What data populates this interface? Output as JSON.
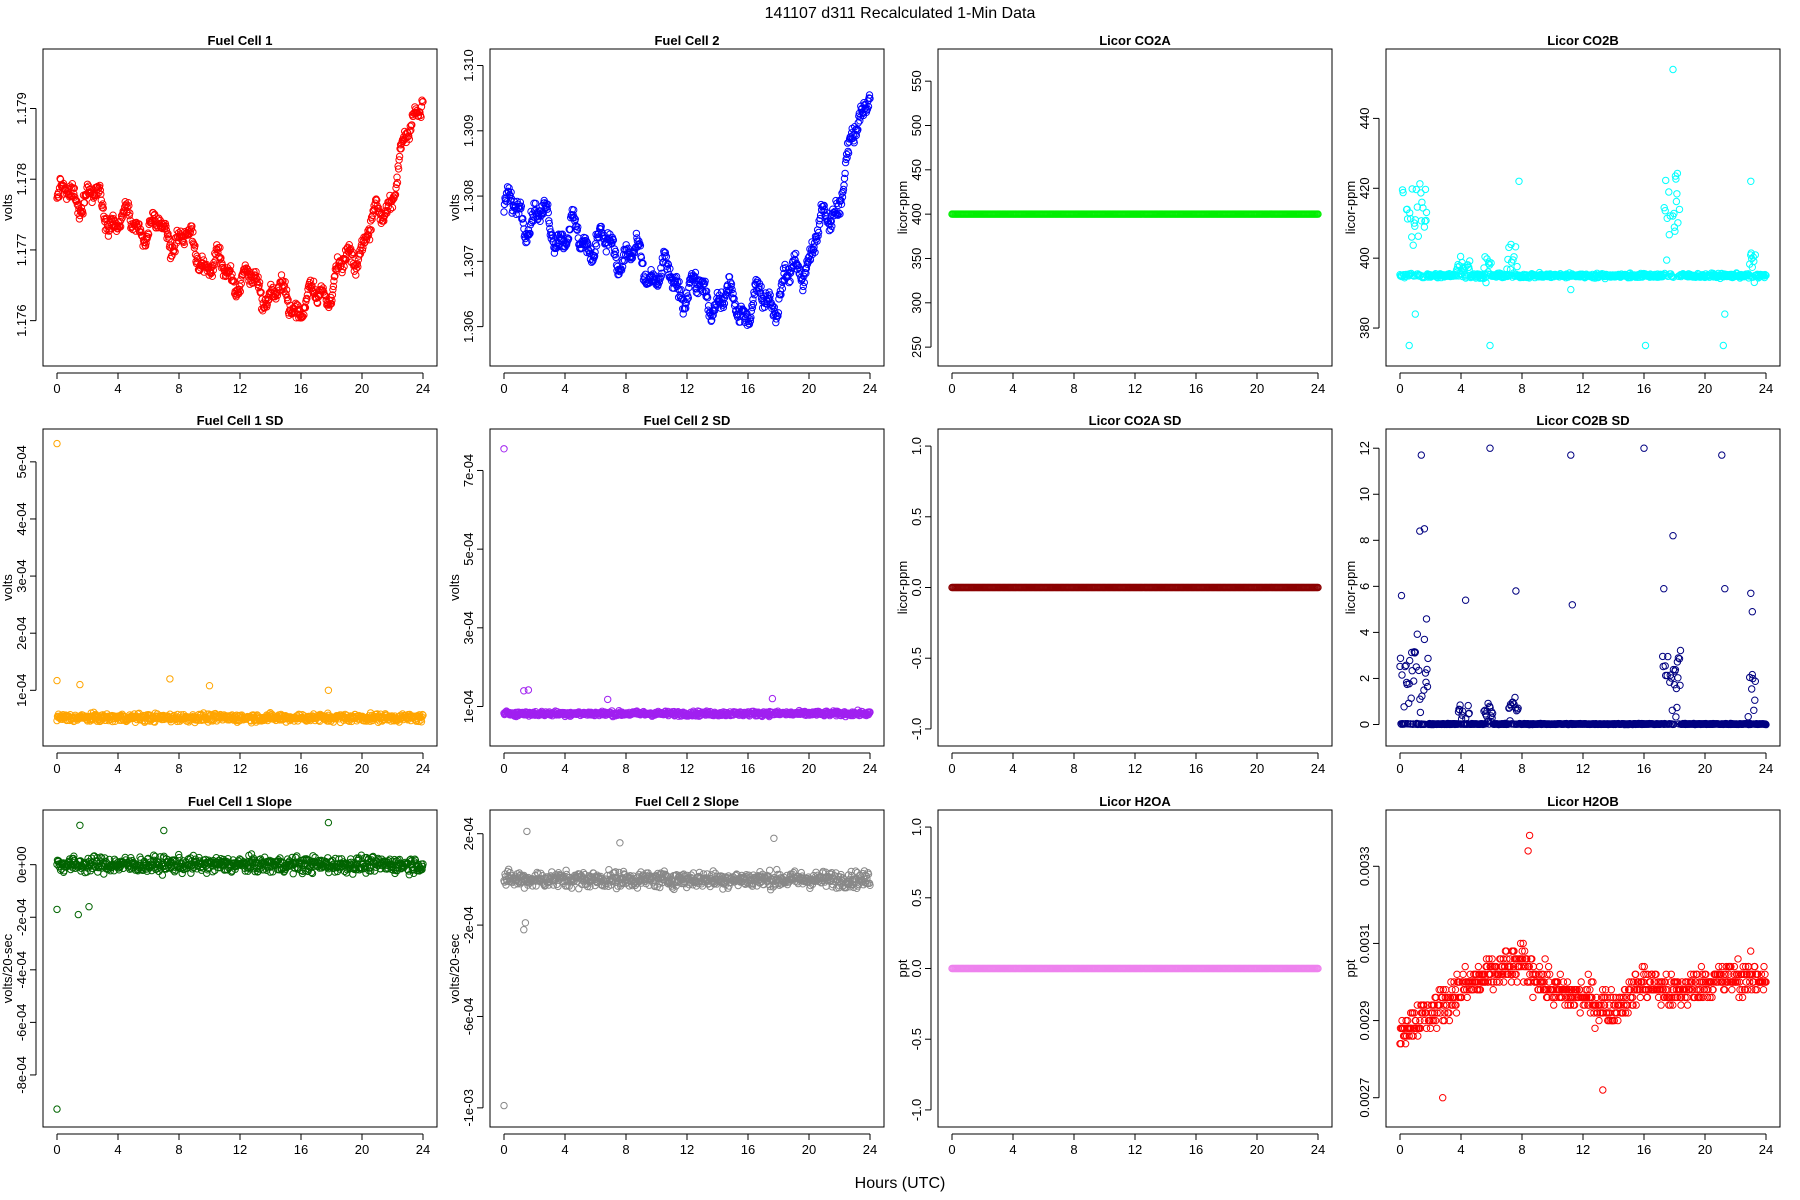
{
  "figure": {
    "title": "141107   d311   Recalculated 1-Min Data",
    "xlabel": "Hours (UTC)"
  },
  "chart_data": [
    {
      "type": "scatter",
      "title": "Fuel Cell 1",
      "ylabel": "volts",
      "color": "#ff0000",
      "xlim": [
        0,
        24
      ],
      "xticks": [
        0,
        4,
        8,
        12,
        16,
        20,
        24
      ],
      "ylim": [
        1.1755,
        1.1797
      ],
      "yticks": [
        1.176,
        1.177,
        1.178,
        1.179
      ],
      "ytick_labels": [
        "1.176",
        "1.177",
        "1.178",
        "1.179"
      ],
      "series": [
        {
          "name": "",
          "gen": "trend",
          "x": [
            0,
            2,
            4,
            6,
            8,
            10,
            12,
            14,
            16,
            18,
            20,
            22,
            23,
            24
          ],
          "y": [
            1.1777,
            1.1778,
            1.1774,
            1.1773,
            1.1772,
            1.1768,
            1.1766,
            1.1764,
            1.1762,
            1.1765,
            1.1771,
            1.1778,
            1.1786,
            1.1793
          ],
          "band": 0.0002
        }
      ]
    },
    {
      "type": "scatter",
      "title": "Fuel Cell 2",
      "ylabel": "volts",
      "color": "#0000ff",
      "xlim": [
        0,
        24
      ],
      "xticks": [
        0,
        4,
        8,
        12,
        16,
        20,
        24
      ],
      "ylim": [
        1.30555,
        1.3101
      ],
      "yticks": [
        1.306,
        1.307,
        1.308,
        1.309,
        1.31
      ],
      "ytick_labels": [
        "1.306",
        "1.307",
        "1.308",
        "1.309",
        "1.310"
      ],
      "series": [
        {
          "name": "",
          "gen": "trend",
          "x": [
            0,
            2,
            4,
            6,
            8,
            10,
            12,
            14,
            16,
            18,
            20,
            22,
            23,
            24
          ],
          "y": [
            1.3078,
            1.3077,
            1.3074,
            1.3073,
            1.3071,
            1.3068,
            1.3066,
            1.3064,
            1.3063,
            1.3065,
            1.3071,
            1.308,
            1.3089,
            1.3098
          ],
          "band": 0.00025
        }
      ]
    },
    {
      "type": "scatter",
      "title": "Licor CO2A",
      "ylabel": "licor-ppm",
      "color": "#00ee00",
      "xlim": [
        0,
        24
      ],
      "xticks": [
        0,
        4,
        8,
        12,
        16,
        20,
        24
      ],
      "ylim": [
        240,
        575
      ],
      "yticks": [
        250,
        300,
        350,
        400,
        450,
        500,
        550
      ],
      "ytick_labels": [
        "250",
        "300",
        "350",
        "400",
        "450",
        "500",
        "550"
      ],
      "series": [
        {
          "name": "",
          "gen": "const",
          "value": 400
        }
      ]
    },
    {
      "type": "scatter",
      "title": "Licor CO2B",
      "ylabel": "licor-ppm",
      "color": "#00ffff",
      "xlim": [
        0,
        24
      ],
      "xticks": [
        0,
        4,
        8,
        12,
        16,
        20,
        24
      ],
      "ylim": [
        372,
        457
      ],
      "yticks": [
        380,
        400,
        420,
        440
      ],
      "ytick_labels": [
        "380",
        "400",
        "420",
        "440"
      ],
      "series": [
        {
          "name": "",
          "gen": "spiky",
          "base": 395,
          "noise": 0.6,
          "spikes": [
            [
              0.0,
              1.9,
              416,
              12
            ],
            [
              3.7,
              4.6,
              398,
              3
            ],
            [
              5.5,
              6.0,
              397,
              4
            ],
            [
              7.0,
              7.8,
              399,
              4
            ],
            [
              17.3,
              18.4,
              415,
              15
            ],
            [
              22.9,
              23.3,
              398,
              5
            ]
          ],
          "extras": [
            [
              0.6,
              375
            ],
            [
              1.0,
              384
            ],
            [
              5.9,
              375
            ],
            [
              7.8,
              422
            ],
            [
              11.2,
              391
            ],
            [
              16.1,
              375
            ],
            [
              17.9,
              454
            ],
            [
              21.2,
              375
            ],
            [
              21.3,
              384
            ],
            [
              23.0,
              422
            ]
          ]
        }
      ]
    },
    {
      "type": "scatter",
      "title": "Fuel Cell 1 SD",
      "ylabel": "volts",
      "color": "#ffa500",
      "xlim": [
        0,
        24
      ],
      "xticks": [
        0,
        4,
        8,
        12,
        16,
        20,
        24
      ],
      "ylim": [
        2e-05,
        0.00054
      ],
      "yticks": [
        0.0001,
        0.0002,
        0.0003,
        0.0004,
        0.0005
      ],
      "ytick_labels": [
        "1e-04",
        "2e-04",
        "3e-04",
        "4e-04",
        "5e-04"
      ],
      "series": [
        {
          "name": "",
          "gen": "noise",
          "base": 5.2e-05,
          "spread": 7e-06,
          "outliers": [
            [
              0.0,
              0.000532
            ],
            [
              0.0,
              0.000117
            ],
            [
              1.5,
              0.00011
            ],
            [
              7.4,
              0.00012
            ],
            [
              10.0,
              0.000108
            ],
            [
              17.8,
              0.0001
            ]
          ]
        }
      ]
    },
    {
      "type": "scatter",
      "title": "Fuel Cell 2 SD",
      "ylabel": "volts",
      "color": "#a020f0",
      "xlim": [
        0,
        24
      ],
      "xticks": [
        0,
        4,
        8,
        12,
        16,
        20,
        24
      ],
      "ylim": [
        2.5e-05,
        0.00078
      ],
      "yticks": [
        0.0001,
        0.0003,
        0.0005,
        0.0007
      ],
      "ytick_labels": [
        "1e-04",
        "3e-04",
        "5e-04",
        "7e-04"
      ],
      "series": [
        {
          "name": "",
          "gen": "noise",
          "base": 8.2e-05,
          "spread": 6e-06,
          "outliers": [
            [
              0.0,
              0.000755
            ],
            [
              1.3,
              0.00014
            ],
            [
              1.6,
              0.000142
            ],
            [
              6.8,
              0.000118
            ],
            [
              17.6,
              0.00012
            ]
          ]
        }
      ]
    },
    {
      "type": "scatter",
      "title": "Licor CO2A SD",
      "ylabel": "licor-ppm",
      "color": "#8b0000",
      "xlim": [
        0,
        24
      ],
      "xticks": [
        0,
        4,
        8,
        12,
        16,
        20,
        24
      ],
      "ylim": [
        -1.05,
        1.05
      ],
      "yticks": [
        -1.0,
        -0.5,
        0.0,
        0.5,
        1.0
      ],
      "ytick_labels": [
        "-1.0",
        "-0.5",
        "0.0",
        "0.5",
        "1.0"
      ],
      "series": [
        {
          "name": "",
          "gen": "const",
          "value": 0.0
        }
      ]
    },
    {
      "type": "scatter",
      "title": "Licor CO2B SD",
      "ylabel": "licor-ppm",
      "color": "#000080",
      "xlim": [
        0,
        24
      ],
      "xticks": [
        0,
        4,
        8,
        12,
        16,
        20,
        24
      ],
      "ylim": [
        -0.5,
        12.4
      ],
      "yticks": [
        0,
        2,
        4,
        6,
        8,
        10,
        12
      ],
      "ytick_labels": [
        "0",
        "2",
        "4",
        "6",
        "8",
        "10",
        "12"
      ],
      "series": [
        {
          "name": "",
          "gen": "spiky",
          "base": 0.02,
          "noise": 0.02,
          "spikes": [
            [
              0.0,
              1.9,
              2.2,
              2.0
            ],
            [
              3.8,
              4.6,
              0.5,
              0.5
            ],
            [
              5.5,
              6.1,
              0.4,
              0.6
            ],
            [
              7.0,
              7.8,
              0.6,
              0.6
            ],
            [
              17.2,
              18.4,
              2.2,
              1.6
            ],
            [
              22.8,
              23.3,
              1.5,
              1.4
            ]
          ],
          "extras": [
            [
              1.4,
              11.7
            ],
            [
              1.3,
              8.4
            ],
            [
              1.6,
              8.5
            ],
            [
              0.1,
              5.6
            ],
            [
              4.3,
              5.4
            ],
            [
              5.9,
              12.0
            ],
            [
              7.6,
              5.8
            ],
            [
              11.2,
              11.7
            ],
            [
              11.3,
              5.2
            ],
            [
              16.0,
              12.0
            ],
            [
              17.3,
              5.9
            ],
            [
              17.9,
              8.2
            ],
            [
              21.1,
              11.7
            ],
            [
              21.3,
              5.9
            ],
            [
              23.0,
              5.7
            ],
            [
              23.1,
              4.9
            ]
          ]
        }
      ]
    },
    {
      "type": "scatter",
      "title": "Fuel Cell 1 Slope",
      "ylabel": "volts/20-sec",
      "color": "#006400",
      "xlim": [
        0,
        24
      ],
      "xticks": [
        0,
        4,
        8,
        12,
        16,
        20,
        24
      ],
      "ylim": [
        -0.00096,
        0.00017
      ],
      "yticks": [
        -0.0008,
        -0.0006,
        -0.0004,
        -0.0002,
        0.0
      ],
      "ytick_labels": [
        "-8e-04",
        "-6e-04",
        "-4e-04",
        "-2e-04",
        "0e+00"
      ],
      "series": [
        {
          "name": "",
          "gen": "noise",
          "base": 0.0,
          "spread": 3e-05,
          "outliers": [
            [
              0.0,
              -0.00093
            ],
            [
              0.0,
              -0.00017
            ],
            [
              1.5,
              0.00015
            ],
            [
              1.4,
              -0.00019
            ],
            [
              2.1,
              -0.00016
            ],
            [
              7.0,
              0.00013
            ],
            [
              17.8,
              0.00016
            ]
          ]
        }
      ]
    },
    {
      "type": "scatter",
      "title": "Fuel Cell 2 Slope",
      "ylabel": "volts/20-sec",
      "color": "#888888",
      "xlim": [
        0,
        24
      ],
      "xticks": [
        0,
        4,
        8,
        12,
        16,
        20,
        24
      ],
      "ylim": [
        -0.00104,
        0.00026
      ],
      "yticks": [
        -0.001,
        -0.0006,
        -0.0002,
        0.0002
      ],
      "ytick_labels": [
        "-1e-03",
        "-6e-04",
        "-2e-04",
        "2e-04"
      ],
      "series": [
        {
          "name": "",
          "gen": "noise",
          "base": 0.0,
          "spread": 3.5e-05,
          "outliers": [
            [
              0.0,
              -0.00099
            ],
            [
              1.5,
              0.00021
            ],
            [
              1.3,
              -0.00022
            ],
            [
              1.4,
              -0.00019
            ],
            [
              7.6,
              0.00016
            ],
            [
              17.7,
              0.00018
            ]
          ]
        }
      ]
    },
    {
      "type": "scatter",
      "title": "Licor H2OA",
      "ylabel": "ppt",
      "color": "#ee82ee",
      "xlim": [
        0,
        24
      ],
      "xticks": [
        0,
        4,
        8,
        12,
        16,
        20,
        24
      ],
      "ylim": [
        -1.05,
        1.05
      ],
      "yticks": [
        -1.0,
        -0.5,
        0.0,
        0.5,
        1.0
      ],
      "ytick_labels": [
        "-1.0",
        "-0.5",
        "0.0",
        "0.5",
        "1.0"
      ],
      "series": [
        {
          "name": "",
          "gen": "const",
          "value": 0.0
        }
      ]
    },
    {
      "type": "scatter",
      "title": "Licor H2OB",
      "ylabel": "ppt",
      "color": "#ff0000",
      "xlim": [
        0,
        24
      ],
      "xticks": [
        0,
        4,
        8,
        12,
        16,
        20,
        24
      ],
      "ylim": [
        0.00265,
        0.00342
      ],
      "yticks": [
        0.0027,
        0.0029,
        0.0031,
        0.0033
      ],
      "ytick_labels": [
        "0.0027",
        "0.0029",
        "0.0031",
        "0.0033"
      ],
      "series": [
        {
          "name": "",
          "gen": "quant",
          "step": 2e-05,
          "x": [
            0,
            2,
            4,
            6,
            8,
            10,
            12,
            14,
            16,
            18,
            20,
            22,
            24
          ],
          "y": [
            0.00288,
            0.00292,
            0.00298,
            0.00302,
            0.00305,
            0.00298,
            0.00296,
            0.00293,
            0.003,
            0.00297,
            0.003,
            0.00301,
            0.00301
          ],
          "band": 9e-05,
          "outliers": [
            [
              8.5,
              0.00338
            ],
            [
              8.4,
              0.00334
            ],
            [
              2.8,
              0.0027
            ],
            [
              13.3,
              0.00272
            ]
          ]
        }
      ]
    }
  ]
}
